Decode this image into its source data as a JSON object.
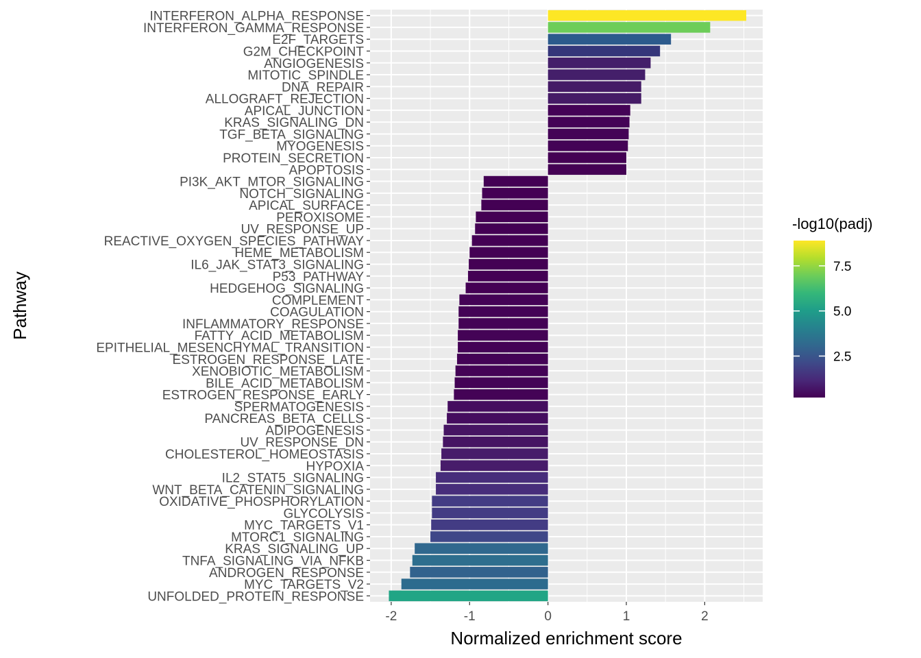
{
  "chart_data": {
    "type": "bar",
    "orientation": "horizontal",
    "xlabel": "Normalized enrichment score",
    "ylabel": "Pathway",
    "xlim": [
      -2.27,
      2.74
    ],
    "x_ticks": [
      -2,
      -1,
      0,
      1,
      2
    ],
    "x_tick_labels": [
      "-2",
      "-1",
      "0",
      "1",
      "2"
    ],
    "grid": true,
    "legend_position": "right",
    "color_scale": {
      "title": "-log10(padj)",
      "palette": "viridis",
      "min": 0.2,
      "max": 8.9,
      "ticks": [
        2.5,
        5.0,
        7.5
      ],
      "tick_labels": [
        "2.5",
        "5.0",
        "7.5"
      ],
      "colors": [
        "#440154",
        "#482878",
        "#3E4A89",
        "#31688E",
        "#26828E",
        "#1F9E89",
        "#35B779",
        "#6DCD59",
        "#B4DE2C",
        "#FDE725"
      ]
    },
    "bars": [
      {
        "pathway": "INTERFERON_ALPHA_RESPONSE",
        "nes": 2.53,
        "neg_log10_padj": 8.9,
        "color": "#FDE725"
      },
      {
        "pathway": "INTERFERON_GAMMA_RESPONSE",
        "nes": 2.07,
        "neg_log10_padj": 7.0,
        "color": "#6DCD59"
      },
      {
        "pathway": "E2F_TARGETS",
        "nes": 1.57,
        "neg_log10_padj": 2.6,
        "color": "#2C5A8C"
      },
      {
        "pathway": "G2M_CHECKPOINT",
        "nes": 1.43,
        "neg_log10_padj": 2.1,
        "color": "#35367A"
      },
      {
        "pathway": "ANGIOGENESIS",
        "nes": 1.31,
        "neg_log10_padj": 0.9,
        "color": "#441F6A"
      },
      {
        "pathway": "MITOTIC_SPINDLE",
        "nes": 1.24,
        "neg_log10_padj": 0.9,
        "color": "#441F6A"
      },
      {
        "pathway": "DNA_REPAIR",
        "nes": 1.19,
        "neg_log10_padj": 0.8,
        "color": "#451B66"
      },
      {
        "pathway": "ALLOGRAFT_REJECTION",
        "nes": 1.19,
        "neg_log10_padj": 0.8,
        "color": "#451B66"
      },
      {
        "pathway": "APICAL_JUNCTION",
        "nes": 1.05,
        "neg_log10_padj": 0.3,
        "color": "#440356"
      },
      {
        "pathway": "KRAS_SIGNALING_DN",
        "nes": 1.04,
        "neg_log10_padj": 0.3,
        "color": "#440356"
      },
      {
        "pathway": "TGF_BETA_SIGNALING",
        "nes": 1.03,
        "neg_log10_padj": 0.3,
        "color": "#440356"
      },
      {
        "pathway": "MYOGENESIS",
        "nes": 1.02,
        "neg_log10_padj": 0.3,
        "color": "#440356"
      },
      {
        "pathway": "PROTEIN_SECRETION",
        "nes": 1.0,
        "neg_log10_padj": 0.2,
        "color": "#440154"
      },
      {
        "pathway": "APOPTOSIS",
        "nes": 1.0,
        "neg_log10_padj": 0.2,
        "color": "#440154"
      },
      {
        "pathway": "PI3K_AKT_MTOR_SIGNALING",
        "nes": -0.82,
        "neg_log10_padj": 0.2,
        "color": "#440154"
      },
      {
        "pathway": "NOTCH_SIGNALING",
        "nes": -0.84,
        "neg_log10_padj": 0.2,
        "color": "#440154"
      },
      {
        "pathway": "APICAL_SURFACE",
        "nes": -0.85,
        "neg_log10_padj": 0.2,
        "color": "#440154"
      },
      {
        "pathway": "PEROXISOME",
        "nes": -0.92,
        "neg_log10_padj": 0.2,
        "color": "#440154"
      },
      {
        "pathway": "UV_RESPONSE_UP",
        "nes": -0.93,
        "neg_log10_padj": 0.2,
        "color": "#440154"
      },
      {
        "pathway": "REACTIVE_OXYGEN_SPECIES_PATHWAY",
        "nes": -0.97,
        "neg_log10_padj": 0.2,
        "color": "#440154"
      },
      {
        "pathway": "HEME_METABOLISM",
        "nes": -1.0,
        "neg_log10_padj": 0.2,
        "color": "#440154"
      },
      {
        "pathway": "IL6_JAK_STAT3_SIGNALING",
        "nes": -1.01,
        "neg_log10_padj": 0.2,
        "color": "#440154"
      },
      {
        "pathway": "P53_PATHWAY",
        "nes": -1.02,
        "neg_log10_padj": 0.2,
        "color": "#440154"
      },
      {
        "pathway": "HEDGEHOG_SIGNALING",
        "nes": -1.05,
        "neg_log10_padj": 0.2,
        "color": "#440154"
      },
      {
        "pathway": "COMPLEMENT",
        "nes": -1.13,
        "neg_log10_padj": 0.3,
        "color": "#440356"
      },
      {
        "pathway": "COAGULATION",
        "nes": -1.14,
        "neg_log10_padj": 0.3,
        "color": "#440356"
      },
      {
        "pathway": "INFLAMMATORY_RESPONSE",
        "nes": -1.14,
        "neg_log10_padj": 0.3,
        "color": "#440356"
      },
      {
        "pathway": "FATTY_ACID_METABOLISM",
        "nes": -1.15,
        "neg_log10_padj": 0.3,
        "color": "#440356"
      },
      {
        "pathway": "EPITHELIAL_MESENCHYMAL_TRANSITION",
        "nes": -1.15,
        "neg_log10_padj": 0.3,
        "color": "#440356"
      },
      {
        "pathway": "ESTROGEN_RESPONSE_LATE",
        "nes": -1.16,
        "neg_log10_padj": 0.3,
        "color": "#440356"
      },
      {
        "pathway": "XENOBIOTIC_METABOLISM",
        "nes": -1.18,
        "neg_log10_padj": 0.3,
        "color": "#440356"
      },
      {
        "pathway": "BILE_ACID_METABOLISM",
        "nes": -1.19,
        "neg_log10_padj": 0.3,
        "color": "#440356"
      },
      {
        "pathway": "ESTROGEN_RESPONSE_EARLY",
        "nes": -1.2,
        "neg_log10_padj": 0.3,
        "color": "#440356"
      },
      {
        "pathway": "SPERMATOGENESIS",
        "nes": -1.28,
        "neg_log10_padj": 0.6,
        "color": "#450D5F"
      },
      {
        "pathway": "PANCREAS_BETA_CELLS",
        "nes": -1.29,
        "neg_log10_padj": 0.6,
        "color": "#450D5F"
      },
      {
        "pathway": "ADIPOGENESIS",
        "nes": -1.33,
        "neg_log10_padj": 0.7,
        "color": "#461563"
      },
      {
        "pathway": "UV_RESPONSE_DN",
        "nes": -1.34,
        "neg_log10_padj": 0.7,
        "color": "#461563"
      },
      {
        "pathway": "CHOLESTEROL_HOMEOSTASIS",
        "nes": -1.36,
        "neg_log10_padj": 0.8,
        "color": "#471C6A"
      },
      {
        "pathway": "HYPOXIA",
        "nes": -1.37,
        "neg_log10_padj": 0.8,
        "color": "#471C6A"
      },
      {
        "pathway": "IL2_STAT5_SIGNALING",
        "nes": -1.43,
        "neg_log10_padj": 1.3,
        "color": "#472D7B"
      },
      {
        "pathway": "WNT_BETA_CATENIN_SIGNALING",
        "nes": -1.43,
        "neg_log10_padj": 1.3,
        "color": "#472D7B"
      },
      {
        "pathway": "OXIDATIVE_PHOSPHORYLATION",
        "nes": -1.48,
        "neg_log10_padj": 1.6,
        "color": "#433C84"
      },
      {
        "pathway": "GLYCOLYSIS",
        "nes": -1.48,
        "neg_log10_padj": 1.6,
        "color": "#433C84"
      },
      {
        "pathway": "MYC_TARGETS_V1",
        "nes": -1.49,
        "neg_log10_padj": 1.6,
        "color": "#433C84"
      },
      {
        "pathway": "MTORC1_SIGNALING",
        "nes": -1.5,
        "neg_log10_padj": 1.7,
        "color": "#3F4788"
      },
      {
        "pathway": "KRAS_SIGNALING_UP",
        "nes": -1.7,
        "neg_log10_padj": 3.2,
        "color": "#30688E"
      },
      {
        "pathway": "TNFA_SIGNALING_VIA_NFKB",
        "nes": -1.73,
        "neg_log10_padj": 2.9,
        "color": "#2E6E8E"
      },
      {
        "pathway": "ANDROGEN_RESPONSE",
        "nes": -1.76,
        "neg_log10_padj": 2.7,
        "color": "#32628D"
      },
      {
        "pathway": "MYC_TARGETS_V2",
        "nes": -1.87,
        "neg_log10_padj": 3.0,
        "color": "#2D6B8E"
      },
      {
        "pathway": "UNFOLDED_PROTEIN_RESPONSE",
        "nes": -2.03,
        "neg_log10_padj": 5.9,
        "color": "#21A585"
      }
    ]
  }
}
